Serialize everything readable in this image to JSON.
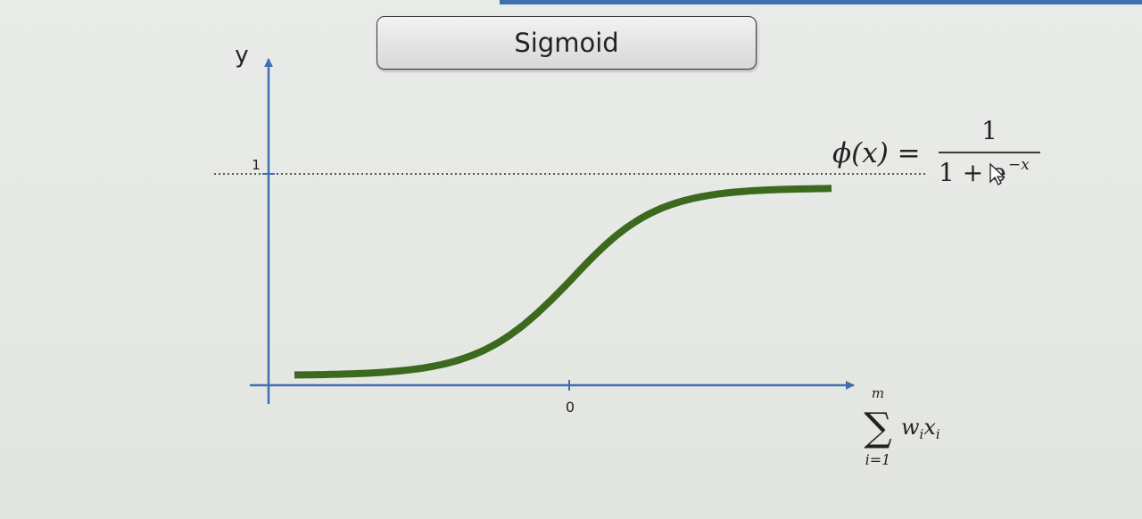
{
  "title": "Sigmoid",
  "chart_data": {
    "type": "line",
    "title": "Sigmoid",
    "function": "logistic",
    "ylabel": "y",
    "x_tick_labels": [
      "0"
    ],
    "y_tick_labels": [
      "1"
    ],
    "xlabel": {
      "sum_symbol": "∑",
      "upper": "m",
      "lower": "i=1",
      "term": "w",
      "term_sub": "i",
      "term2": "x",
      "term2_sub": "i"
    },
    "formula": {
      "lhs": "ϕ(x) =",
      "numerator": "1",
      "denominator": "1 + e",
      "exponent": "−x"
    },
    "asymptote": 1,
    "xlim": [
      -6,
      6
    ],
    "ylim": [
      0,
      1.35
    ],
    "series": [
      {
        "name": "sigmoid",
        "color": "#3b6a1f",
        "x_range": [
          -6,
          6
        ]
      }
    ]
  },
  "colors": {
    "axis": "#3f6fb0",
    "curve": "#3b6a1f",
    "asymptote": "#555555"
  }
}
